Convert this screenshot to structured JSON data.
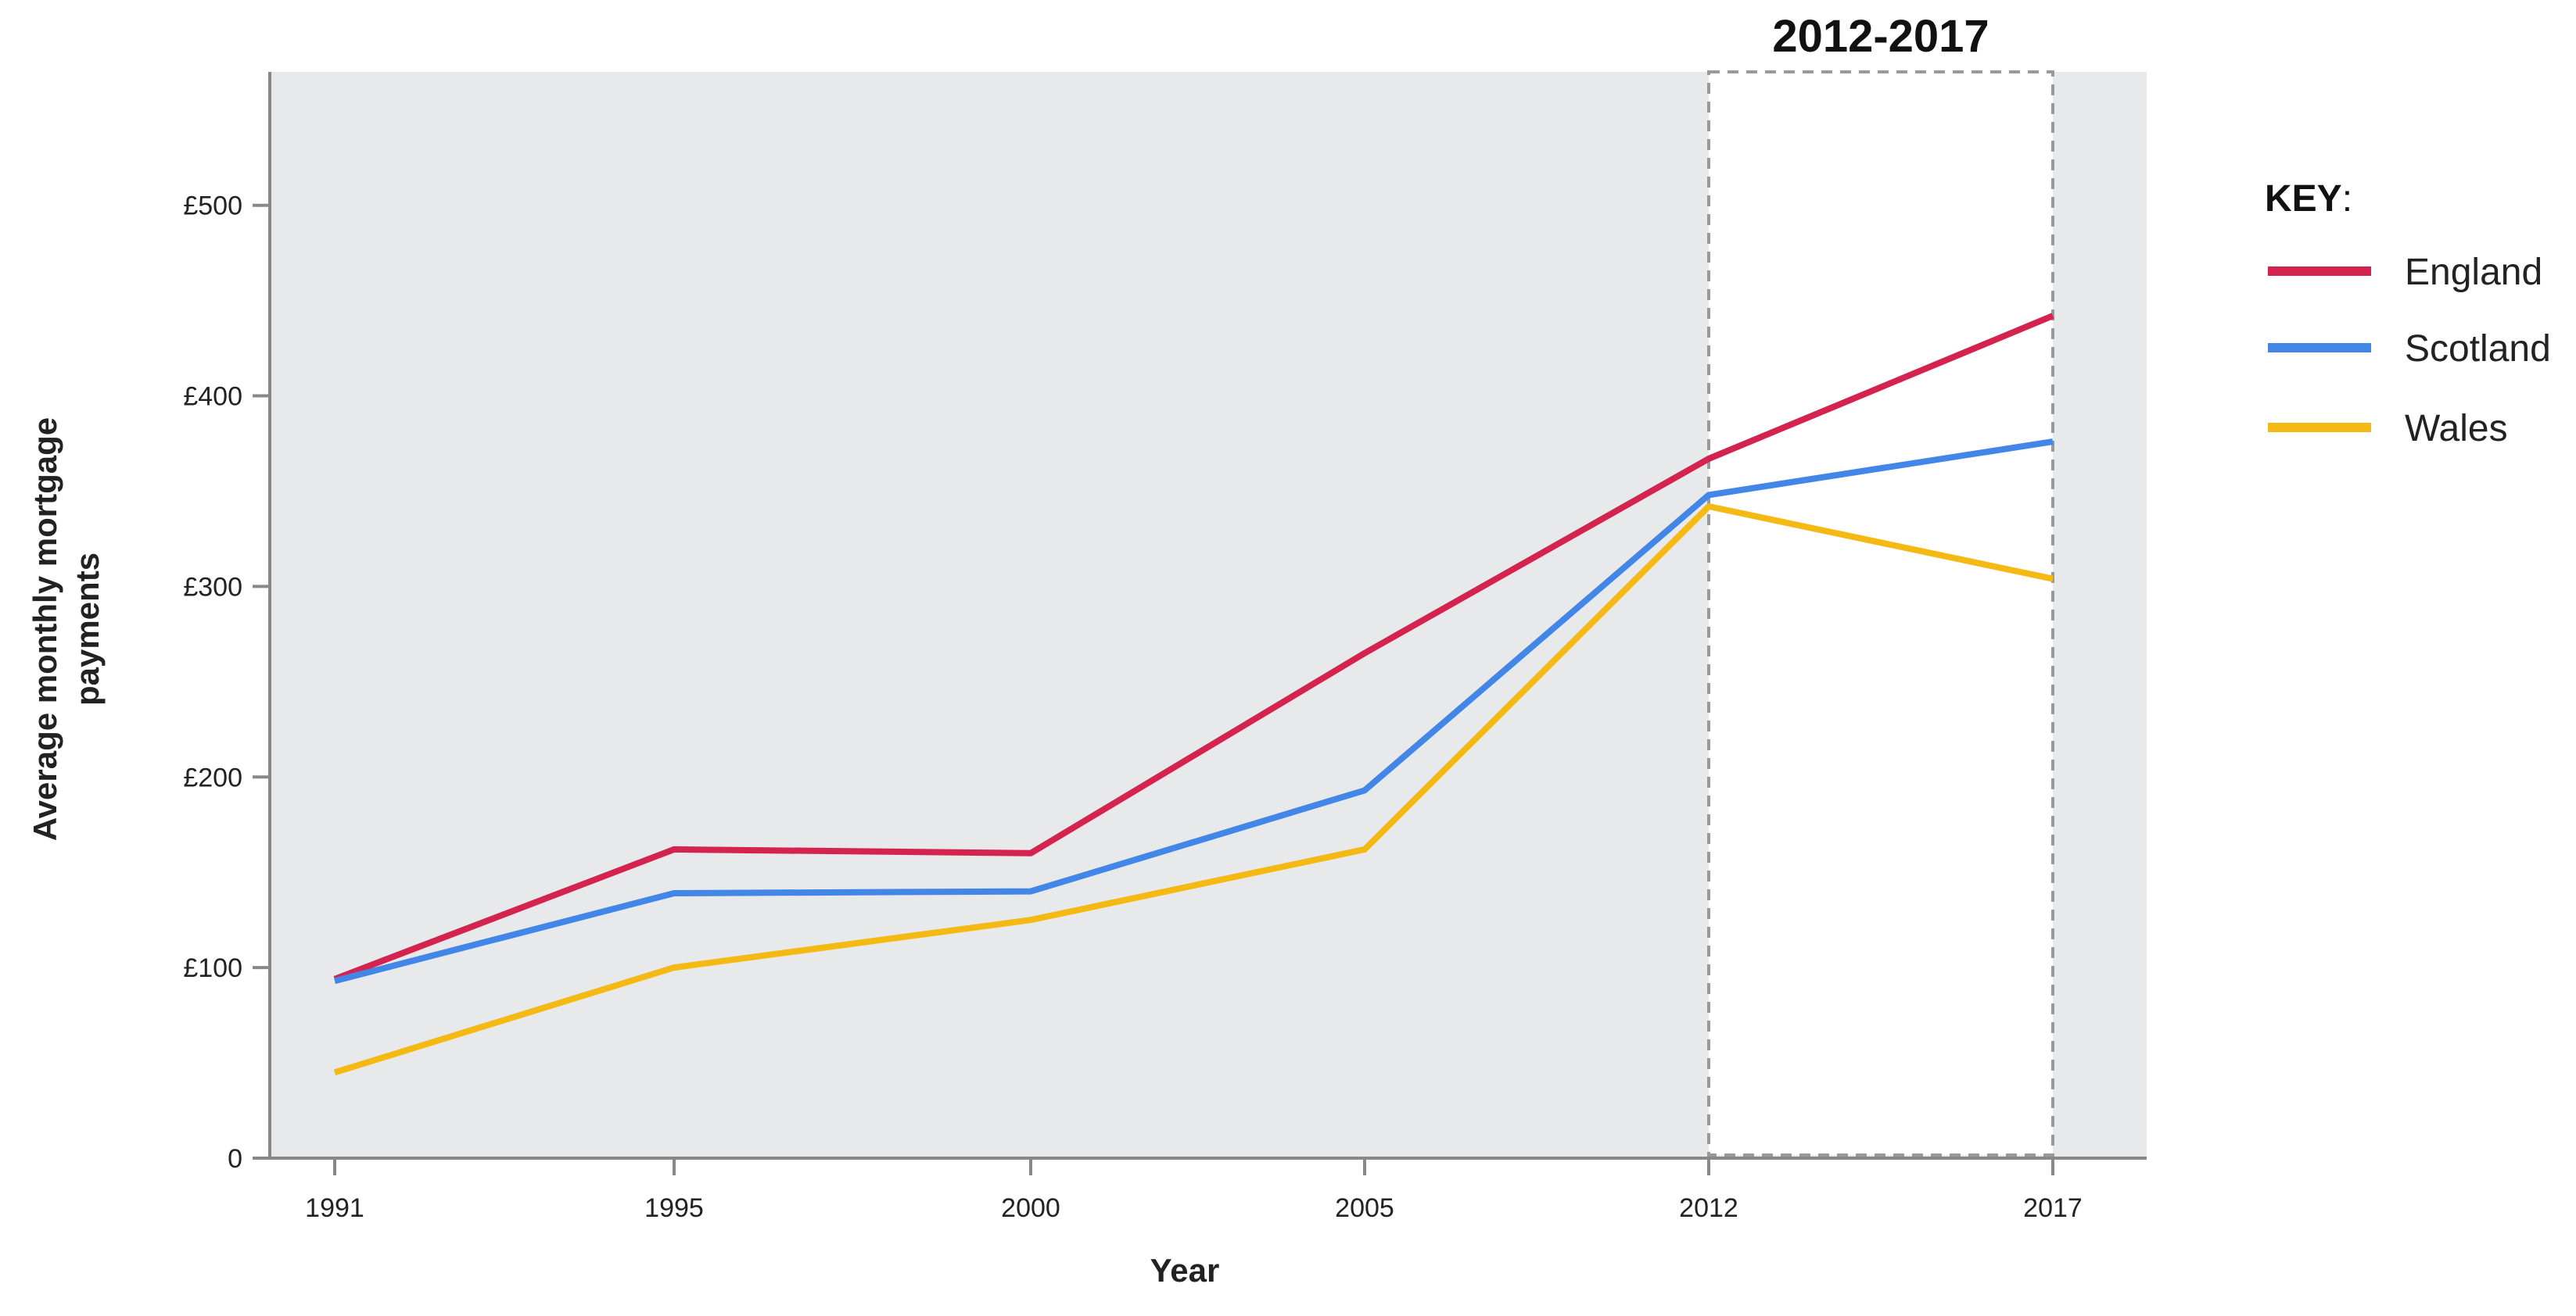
{
  "chart_data": {
    "type": "line",
    "title": "",
    "xlabel": "Year",
    "ylabel": "Average monthly mortgage payments",
    "ylabel_lines": [
      "Average monthly mortgage",
      "payments"
    ],
    "categories": [
      "1991",
      "1995",
      "2000",
      "2005",
      "2012",
      "2017"
    ],
    "y_ticks": [
      {
        "value": 0,
        "label": "0"
      },
      {
        "value": 100,
        "label": "£100"
      },
      {
        "value": 200,
        "label": "£200"
      },
      {
        "value": 300,
        "label": "£300"
      },
      {
        "value": 400,
        "label": "£400"
      },
      {
        "value": 500,
        "label": "£500"
      }
    ],
    "ylim": [
      0,
      570
    ],
    "grid": false,
    "legend": {
      "title": "KEY",
      "title_suffix": ":",
      "placement": "right"
    },
    "highlight": {
      "label": "2012-2017",
      "from": "2012",
      "to": "2017"
    },
    "series": [
      {
        "name": "England",
        "color": "#d4234f",
        "values": [
          94,
          162,
          160,
          265,
          367,
          442
        ]
      },
      {
        "name": "Scotland",
        "color": "#4286e8",
        "values": [
          93,
          139,
          140,
          193,
          348,
          376
        ]
      },
      {
        "name": "Wales",
        "color": "#f5b914",
        "values": [
          45,
          100,
          125,
          162,
          342,
          304
        ]
      }
    ],
    "colors": {
      "plot_background": "#e8e9eb",
      "highlight_background": "#ffffff",
      "axis": "#888888",
      "highlight_border": "#999999"
    }
  }
}
